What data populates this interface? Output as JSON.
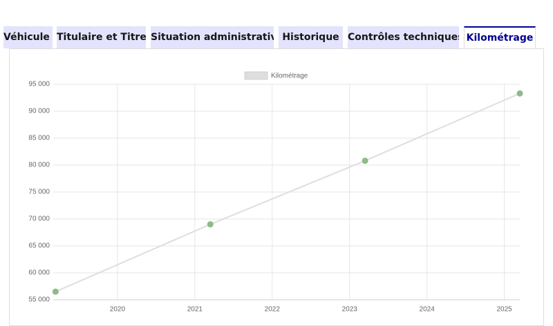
{
  "tabs": [
    {
      "label": "Véhicule"
    },
    {
      "label": "Titulaire et Titre"
    },
    {
      "label": "Situation administrative"
    },
    {
      "label": "Historique"
    },
    {
      "label": "Contrôles techniques"
    },
    {
      "label": "Kilométrage",
      "active": true
    }
  ],
  "chart_data": {
    "type": "line",
    "x": [
      2019.2,
      2021.2,
      2023.2,
      2025.2
    ],
    "series": [
      {
        "name": "Kilométrage",
        "color": "#8fb98a",
        "line_color": "#dedede",
        "values": [
          56500,
          69000,
          80800,
          93300
        ]
      }
    ],
    "xlim": [
      2019.17,
      2025.2
    ],
    "xticks": [
      2020,
      2021,
      2022,
      2023,
      2024,
      2025
    ],
    "ylim": [
      55000,
      95000
    ],
    "yticks": [
      {
        "value": 55000,
        "label": "55 000"
      },
      {
        "value": 60000,
        "label": "60 000"
      },
      {
        "value": 65000,
        "label": "65 000"
      },
      {
        "value": 70000,
        "label": "70 000"
      },
      {
        "value": 75000,
        "label": "75 000"
      },
      {
        "value": 80000,
        "label": "80 000"
      },
      {
        "value": 85000,
        "label": "85 000"
      },
      {
        "value": 90000,
        "label": "90 000"
      },
      {
        "value": 95000,
        "label": "95 000"
      }
    ],
    "grid": true,
    "legend": "top"
  }
}
